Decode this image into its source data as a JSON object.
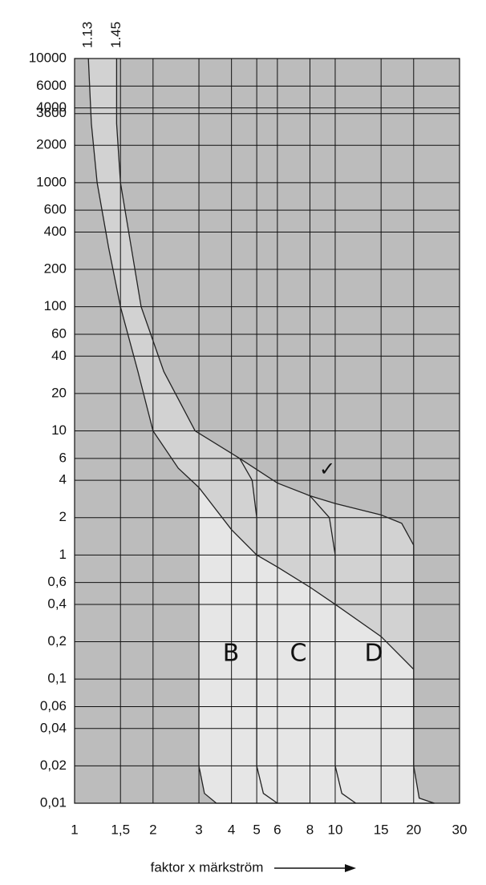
{
  "chart_data": {
    "type": "trip-curve",
    "xlabel": "faktor x märkström",
    "log_x": true,
    "log_y": true,
    "grid": true,
    "xlim": [
      1,
      30
    ],
    "ylim": [
      0.01,
      10000
    ],
    "xticks": [
      1,
      {
        "value": 1.5,
        "label": "1,5"
      },
      2,
      3,
      4,
      5,
      6,
      8,
      10,
      15,
      20,
      30
    ],
    "top_xticks": [
      1.13,
      1.45
    ],
    "yticks": [
      10000,
      6000,
      4000,
      3600,
      2000,
      1000,
      600,
      400,
      200,
      100,
      60,
      40,
      20,
      10,
      6,
      4,
      2,
      1,
      {
        "value": 0.6,
        "label": "0,6"
      },
      {
        "value": 0.4,
        "label": "0,4"
      },
      {
        "value": 0.2,
        "label": "0,2"
      },
      {
        "value": 0.1,
        "label": "0,1"
      },
      {
        "value": 0.06,
        "label": "0,06"
      },
      {
        "value": 0.04,
        "label": "0,04"
      },
      {
        "value": 0.02,
        "label": "0,02"
      },
      {
        "value": 0.01,
        "label": "0,01"
      }
    ],
    "plot_color": "#bcbcbc",
    "band_color": "#d2d2d2",
    "zone_color": "#e6e6e6",
    "series": [
      {
        "color": "#222222",
        "x": [
          1.13,
          1.16,
          1.22,
          1.35,
          1.5,
          1.75,
          2,
          2.5,
          3,
          4,
          5,
          6,
          8,
          10,
          15,
          20
        ],
        "y": [
          10000,
          3000,
          1000,
          300,
          100,
          30,
          10,
          5,
          3.5,
          1.6,
          1.0,
          0.8,
          0.55,
          0.4,
          0.22,
          0.12
        ]
      },
      {
        "color": "#222222",
        "x": [
          1.45,
          1.45,
          1.5,
          1.65,
          1.8,
          2.2,
          2.9,
          4.3,
          6,
          8,
          10,
          15,
          18,
          20,
          20
        ],
        "y": [
          10000,
          3000,
          1000,
          300,
          100,
          30,
          10,
          6,
          3.8,
          3,
          2.6,
          2.1,
          1.8,
          1.2,
          0.1
        ]
      },
      {
        "color": "#222222",
        "x": [
          3,
          3,
          3.15,
          3.5,
          24
        ],
        "y": [
          3.5,
          0.02,
          0.012,
          0.01,
          0.01
        ]
      },
      {
        "color": "#222222",
        "x": [
          4.3,
          4.8,
          5,
          5,
          5.3,
          6
        ],
        "y": [
          6,
          4,
          2,
          0.02,
          0.012,
          0.01
        ]
      },
      {
        "color": "#222222",
        "x": [
          8,
          9.5,
          10,
          10,
          10.6,
          12
        ],
        "y": [
          3,
          2,
          1,
          0.02,
          0.012,
          0.01
        ]
      },
      {
        "color": "#222222",
        "x": [
          20,
          20,
          21,
          24
        ],
        "y": [
          0.1,
          0.02,
          0.011,
          0.01
        ]
      }
    ],
    "annotations": [
      "B",
      "C",
      "D",
      "✓"
    ]
  }
}
